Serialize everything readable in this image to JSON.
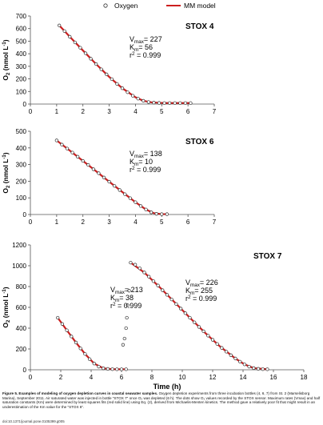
{
  "legend": {
    "items": [
      {
        "label": "Oxygen",
        "marker": "open-circle"
      },
      {
        "label": "MM model",
        "marker": "red-line"
      }
    ]
  },
  "colors": {
    "model": "#cc1f1f",
    "points": "#333333",
    "axis": "#555555"
  },
  "chart_data": [
    {
      "type": "scatter",
      "panel_label": "STOX 4",
      "ylabel": "O2 (nmol L-1)",
      "xlabel": "",
      "xlim": [
        0,
        7
      ],
      "ylim": [
        0,
        700
      ],
      "xticks": [
        "0",
        "1",
        "2",
        "3",
        "4",
        "5",
        "6",
        "7"
      ],
      "yticks": [
        "0",
        "100",
        "200",
        "300",
        "400",
        "500",
        "600",
        "700"
      ],
      "annotation": {
        "vmax": "227",
        "km": "56",
        "r2": "0.999"
      },
      "series": [
        {
          "name": "Oxygen",
          "x": [
            1.1,
            1.3,
            1.5,
            1.7,
            1.9,
            2.1,
            2.3,
            2.5,
            2.7,
            2.9,
            3.1,
            3.3,
            3.5,
            3.7,
            3.9,
            4.1,
            4.3,
            4.5,
            4.7,
            4.9,
            5.1,
            5.3,
            5.5,
            5.7,
            5.9,
            6.1
          ],
          "y": [
            625,
            580,
            535,
            490,
            448,
            404,
            360,
            318,
            276,
            236,
            198,
            160,
            126,
            94,
            66,
            43,
            26,
            16,
            11,
            9,
            8,
            8,
            8,
            8,
            8,
            8
          ]
        },
        {
          "name": "MM model",
          "x": [
            1.1,
            1.5,
            2.0,
            2.5,
            3.0,
            3.5,
            4.0,
            4.3,
            4.6,
            4.9,
            5.2,
            5.6,
            6.1
          ],
          "y": [
            625,
            535,
            426,
            318,
            216,
            126,
            54,
            26,
            14,
            10,
            8,
            8,
            8
          ]
        }
      ]
    },
    {
      "type": "scatter",
      "panel_label": "STOX 6",
      "ylabel": "O2 (nmol L-1)",
      "xlabel": "",
      "xlim": [
        0,
        7
      ],
      "ylim": [
        0,
        500
      ],
      "xticks": [
        "0",
        "1",
        "2",
        "3",
        "4",
        "5",
        "6",
        "7"
      ],
      "yticks": [
        "0",
        "100",
        "200",
        "300",
        "400",
        "500"
      ],
      "annotation": {
        "vmax": "138",
        "km": "10",
        "r2": "0.999"
      },
      "series": [
        {
          "name": "Oxygen",
          "x": [
            1.0,
            1.2,
            1.4,
            1.6,
            1.8,
            2.0,
            2.2,
            2.4,
            2.6,
            2.8,
            3.0,
            3.2,
            3.4,
            3.6,
            3.8,
            4.0,
            4.2,
            4.4,
            4.6,
            4.8,
            5.0,
            5.2
          ],
          "y": [
            445,
            420,
            396,
            372,
            347,
            322,
            298,
            272,
            248,
            222,
            197,
            172,
            147,
            122,
            98,
            74,
            51,
            30,
            13,
            4,
            2,
            2
          ]
        },
        {
          "name": "MM model",
          "x": [
            1.0,
            1.5,
            2.0,
            2.5,
            3.0,
            3.5,
            4.0,
            4.4,
            4.7,
            5.0,
            5.2
          ],
          "y": [
            445,
            384,
            322,
            260,
            197,
            135,
            74,
            30,
            8,
            2,
            2
          ]
        }
      ]
    },
    {
      "type": "scatter",
      "panel_label": "STOX 7",
      "ylabel": "O2 (nmol L-1)",
      "xlabel": "Time (h)",
      "xlim": [
        0,
        18
      ],
      "ylim": [
        0,
        1200
      ],
      "xticks": [
        "0",
        "2",
        "4",
        "6",
        "8",
        "10",
        "12",
        "14",
        "16",
        "18"
      ],
      "yticks": [
        "0",
        "200",
        "400",
        "600",
        "800",
        "1000",
        "1200"
      ],
      "annotations": [
        {
          "vmax": "213",
          "km": "38",
          "r2": "0.999"
        },
        {
          "vmax": "226",
          "km": "255",
          "r2": "0.999"
        }
      ],
      "series": [
        {
          "name": "Oxygen",
          "x": [
            1.8,
            2.1,
            2.4,
            2.7,
            3.0,
            3.3,
            3.6,
            3.9,
            4.2,
            4.5,
            4.8,
            5.1,
            5.4,
            5.7,
            6.0,
            6.3,
            6.1,
            6.2,
            6.3,
            6.35,
            6.4,
            6.5,
            6.6,
            6.9,
            7.2,
            7.5,
            7.8,
            8.1,
            8.4,
            8.7,
            9.0,
            9.3,
            9.6,
            9.9,
            10.2,
            10.5,
            10.8,
            11.1,
            11.4,
            11.7,
            12.0,
            12.3,
            12.6,
            12.9,
            13.2,
            13.5,
            13.8,
            14.1,
            14.4,
            14.7,
            15.0,
            15.3,
            15.6
          ],
          "y": [
            500,
            440,
            380,
            320,
            262,
            205,
            152,
            102,
            60,
            30,
            14,
            8,
            6,
            5,
            5,
            5,
            240,
            300,
            400,
            500,
            620,
            760,
            1030,
            1010,
            975,
            935,
            895,
            852,
            810,
            765,
            720,
            676,
            632,
            588,
            544,
            500,
            456,
            412,
            370,
            328,
            288,
            248,
            210,
            174,
            140,
            108,
            78,
            52,
            30,
            16,
            9,
            6,
            5
          ]
        },
        {
          "name": "MM model",
          "x": [
            1.8,
            2.4,
            3.0,
            3.6,
            4.2,
            4.8,
            5.4,
            6.3,
            6.6,
            7.5,
            8.5,
            9.5,
            10.5,
            11.5,
            12.5,
            13.5,
            14.1,
            14.7,
            15.6
          ],
          "y": [
            500,
            380,
            262,
            152,
            60,
            14,
            6,
            5,
            1030,
            935,
            795,
            648,
            500,
            355,
            222,
            108,
            52,
            16,
            5
          ]
        }
      ]
    }
  ],
  "caption": {
    "label": "Figure 5. Examples of modeling of oxygen depletion curves in coastal seawater samples.",
    "text": "Oxygen depletion experiments from three incubation bottles (4, 6, 7) from St. 2 (Marselisborg Marina), September 2011. Air saturated water was injected in bottle \"STOX 7\" once O₂ was depleted (6 h). The dots show O₂ values recorded by the STOX sensor. Maximum rates (Vmax) and half saturation constants (Km) were determined by least squares fits (red solid line) using Eq. (2), derived from Michaelis-Menten kinetics. The method gave a relatively poor fit that might result in an underestimation of the Km value for the \"STOX 6\".",
    "doi": "doi:10.1371/journal.pone.0105399.g005"
  }
}
